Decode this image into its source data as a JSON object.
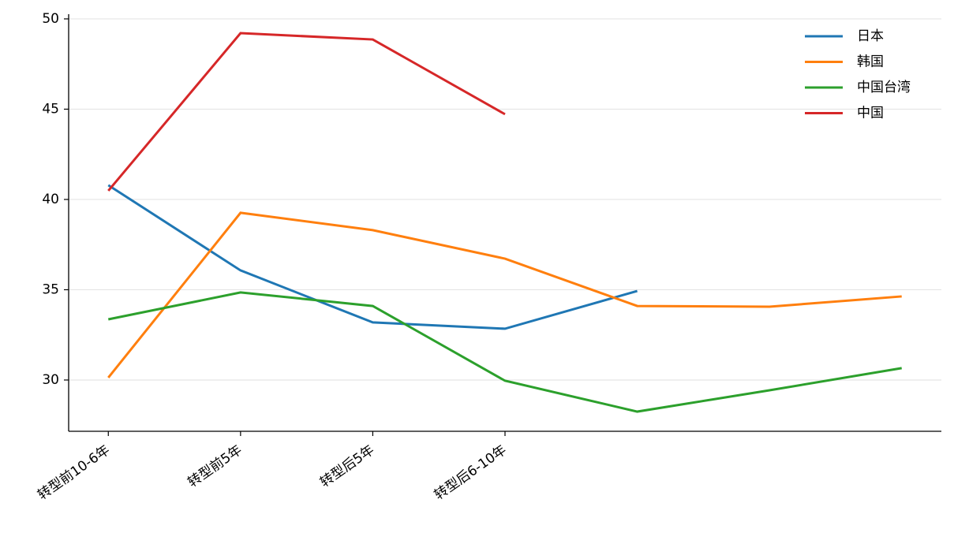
{
  "chart_data": {
    "type": "line",
    "categories": [
      "转型前10-6年",
      "转型前5年",
      "转型后5年",
      "转型后6-10年",
      null,
      null,
      null
    ],
    "series": [
      {
        "name": "日本",
        "color": "#1f77b4",
        "values": [
          40.79,
          36.07,
          33.19,
          32.84,
          34.93,
          null,
          null
        ]
      },
      {
        "name": "韩国",
        "color": "#ff7f0e",
        "values": [
          30.13,
          39.26,
          38.3,
          36.72,
          34.1,
          34.06,
          34.63
        ]
      },
      {
        "name": "中国台湾",
        "color": "#2ca02c",
        "values": [
          33.36,
          34.85,
          34.1,
          29.96,
          28.25,
          29.43,
          30.66
        ]
      },
      {
        "name": "中国",
        "color": "#d62728",
        "values": [
          40.48,
          49.21,
          48.86,
          44.72,
          null,
          null,
          null
        ]
      }
    ],
    "ylim": [
      27.16,
      50.26
    ],
    "yticks": [
      30,
      35,
      40,
      45,
      50
    ],
    "grid": true,
    "legend": "upper right"
  }
}
